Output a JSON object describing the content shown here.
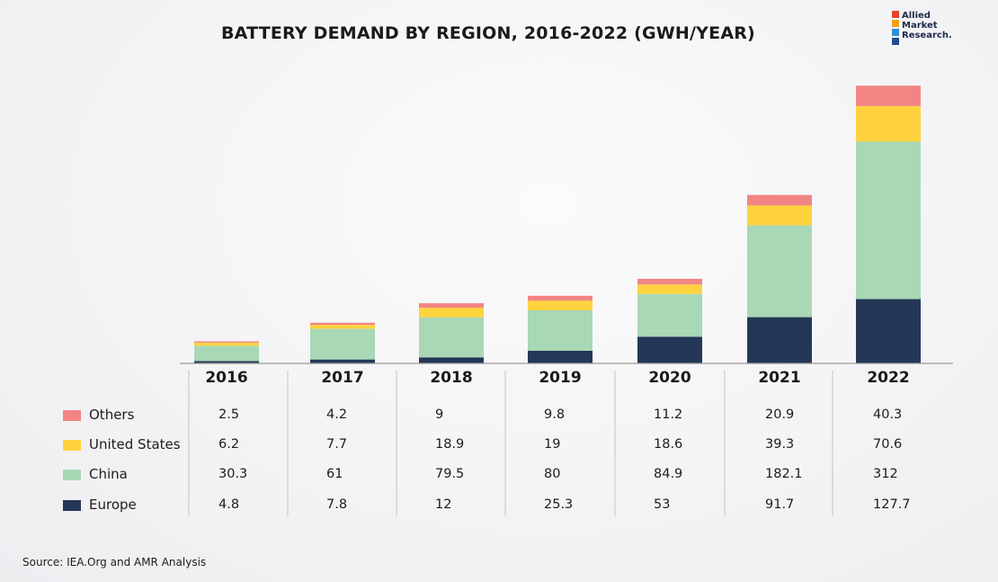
{
  "chart_data": {
    "type": "bar",
    "stacked": true,
    "title": "BATTERY DEMAND BY REGION, 2016-2022 (GWH/YEAR)",
    "categories": [
      "2016",
      "2017",
      "2018",
      "2019",
      "2020",
      "2021",
      "2022"
    ],
    "series": [
      {
        "name": "Europe",
        "color": "#243757",
        "values": [
          4.8,
          7.8,
          12,
          25.3,
          53,
          91.7,
          127.7
        ]
      },
      {
        "name": "China",
        "color": "#a8d8b6",
        "values": [
          30.3,
          61,
          79.5,
          80,
          84.9,
          182.1,
          312
        ]
      },
      {
        "name": "United States",
        "color": "#ffd33d",
        "values": [
          6.2,
          7.7,
          18.9,
          19,
          18.6,
          39.3,
          70.6
        ]
      },
      {
        "name": "Others",
        "color": "#f28584",
        "values": [
          2.5,
          4.2,
          9,
          9.8,
          11.2,
          20.9,
          40.3
        ]
      }
    ],
    "table_rows": [
      {
        "name": "Others",
        "color": "#f28584",
        "values": [
          "2.5",
          "4.2",
          "9",
          "9.8",
          "11.2",
          "20.9",
          "40.3"
        ]
      },
      {
        "name": "United States",
        "color": "#ffd33d",
        "values": [
          "6.2",
          "7.7",
          "18.9",
          "19",
          "18.6",
          "39.3",
          "70.6"
        ]
      },
      {
        "name": "China",
        "color": "#a8d8b6",
        "values": [
          "30.3",
          "61",
          "79.5",
          "80",
          "84.9",
          "182.1",
          "312"
        ]
      },
      {
        "name": "Europe",
        "color": "#243757",
        "values": [
          "4.8",
          "7.8",
          "12",
          "25.3",
          "53",
          "91.7",
          "127.7"
        ]
      }
    ],
    "ylim": [
      0,
      560
    ],
    "xlabel": "",
    "ylabel": "",
    "grid": false,
    "legend": "left of table"
  },
  "logo": {
    "text": "Allied\nMarket\nResearch."
  },
  "source": "Source: IEA.Org and AMR Analysis"
}
